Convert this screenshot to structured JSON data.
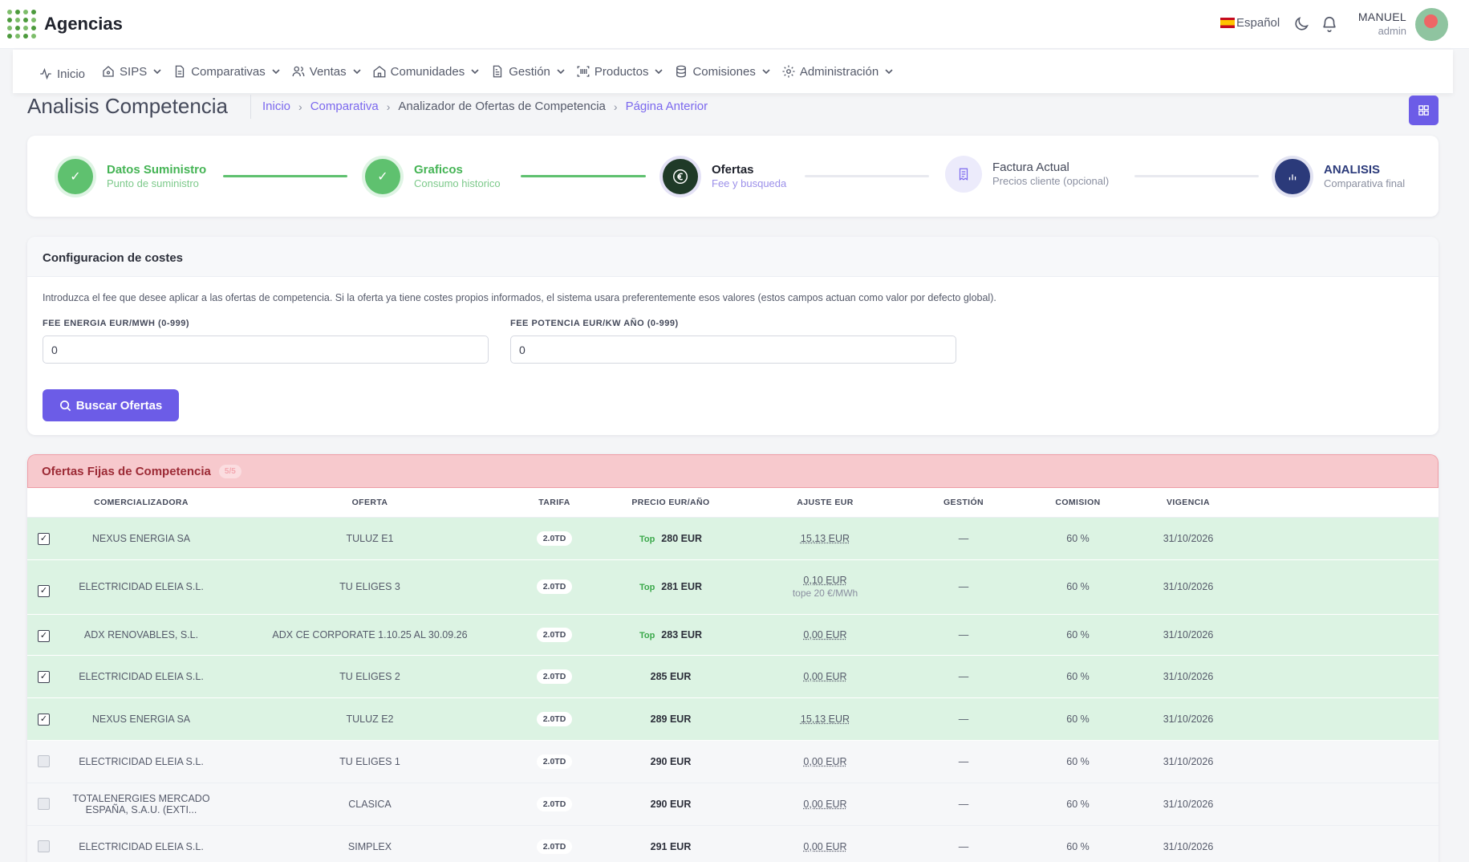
{
  "app": {
    "title": "Agencias"
  },
  "header": {
    "language": "Español",
    "user_name": "MANUEL",
    "user_role": "admin"
  },
  "nav": {
    "items": [
      {
        "label": "Inicio",
        "icon": "activity-icon"
      },
      {
        "label": "SIPS",
        "icon": "home-icon"
      },
      {
        "label": "Comparativas",
        "icon": "document-icon"
      },
      {
        "label": "Ventas",
        "icon": "users-icon"
      },
      {
        "label": "Comunidades",
        "icon": "house-icon"
      },
      {
        "label": "Gestión",
        "icon": "file-text-icon"
      },
      {
        "label": "Productos",
        "icon": "barcode-icon"
      },
      {
        "label": "Comisiones",
        "icon": "database-icon"
      },
      {
        "label": "Administración",
        "icon": "gear-icon"
      }
    ]
  },
  "page": {
    "title": "Analisis Competencia",
    "breadcrumb": [
      "Inicio",
      "Comparativa",
      "Analizador de Ofertas de Competencia",
      "Página Anterior"
    ]
  },
  "stepper": {
    "steps": [
      {
        "title": "Datos Suministro",
        "subtitle": "Punto de suministro",
        "state": "done"
      },
      {
        "title": "Graficos",
        "subtitle": "Consumo historico",
        "state": "done"
      },
      {
        "title": "Ofertas",
        "subtitle": "Fee y busqueda",
        "state": "current"
      },
      {
        "title": "Factura Actual",
        "subtitle": "Precios cliente (opcional)",
        "state": "pending"
      },
      {
        "title": "ANALISIS",
        "subtitle": "Comparativa final",
        "state": "final"
      }
    ]
  },
  "config": {
    "title": "Configuracion de costes",
    "description": "Introduzca el fee que desee aplicar a las ofertas de competencia. Si la oferta ya tiene costes propios informados, el sistema usara preferentemente esos valores (estos campos actuan como valor por defecto global).",
    "fee_energia_label": "FEE ENERGIA EUR/MWH (0-999)",
    "fee_energia_value": "0",
    "fee_potencia_label": "FEE POTENCIA EUR/KW AÑO (0-999)",
    "fee_potencia_value": "0",
    "search_button": "Buscar Ofertas"
  },
  "offers": {
    "title": "Ofertas Fijas de Competencia",
    "count": "5/5",
    "columns": [
      "COMERCIALIZADORA",
      "OFERTA",
      "TARIFA",
      "PRECIO EUR/AÑO",
      "AJUSTE EUR",
      "GESTIÓN",
      "COMISION",
      "VIGENCIA"
    ],
    "rows": [
      {
        "checked": true,
        "comercializadora": "NEXUS ENERGIA SA",
        "oferta": "TULUZ E1",
        "tarifa": "2.0TD",
        "top": "Top",
        "precio": "280 EUR",
        "ajuste": "15,13 EUR",
        "ajuste_note": "",
        "gestion": "—",
        "comision": "60 %",
        "vigencia": "31/10/2026"
      },
      {
        "checked": true,
        "comercializadora": "ELECTRICIDAD ELEIA S.L.",
        "oferta": "TU ELIGES 3",
        "tarifa": "2.0TD",
        "top": "Top",
        "precio": "281 EUR",
        "ajuste": "0,10 EUR",
        "ajuste_note": "tope 20 €/MWh",
        "gestion": "—",
        "comision": "60 %",
        "vigencia": "31/10/2026"
      },
      {
        "checked": true,
        "comercializadora": "ADX RENOVABLES, S.L.",
        "oferta": "ADX CE CORPORATE 1.10.25 AL 30.09.26",
        "tarifa": "2.0TD",
        "top": "Top",
        "precio": "283 EUR",
        "ajuste": "0,00 EUR",
        "ajuste_note": "",
        "gestion": "—",
        "comision": "60 %",
        "vigencia": "31/10/2026"
      },
      {
        "checked": true,
        "comercializadora": "ELECTRICIDAD ELEIA S.L.",
        "oferta": "TU ELIGES 2",
        "tarifa": "2.0TD",
        "top": "",
        "precio": "285 EUR",
        "ajuste": "0,00 EUR",
        "ajuste_note": "",
        "gestion": "—",
        "comision": "60 %",
        "vigencia": "31/10/2026"
      },
      {
        "checked": true,
        "comercializadora": "NEXUS ENERGIA SA",
        "oferta": "TULUZ E2",
        "tarifa": "2.0TD",
        "top": "",
        "precio": "289 EUR",
        "ajuste": "15,13 EUR",
        "ajuste_note": "",
        "gestion": "—",
        "comision": "60 %",
        "vigencia": "31/10/2026"
      },
      {
        "checked": false,
        "comercializadora": "ELECTRICIDAD ELEIA S.L.",
        "oferta": "TU ELIGES 1",
        "tarifa": "2.0TD",
        "top": "",
        "precio": "290 EUR",
        "ajuste": "0,00 EUR",
        "ajuste_note": "",
        "gestion": "—",
        "comision": "60 %",
        "vigencia": "31/10/2026"
      },
      {
        "checked": false,
        "comercializadora": "TOTALENERGIES MERCADO ESPAÑA, S.A.U. (EXTI...",
        "oferta": "CLASICA",
        "tarifa": "2.0TD",
        "top": "",
        "precio": "290 EUR",
        "ajuste": "0,00 EUR",
        "ajuste_note": "",
        "gestion": "—",
        "comision": "60 %",
        "vigencia": "31/10/2026"
      },
      {
        "checked": false,
        "comercializadora": "ELECTRICIDAD ELEIA S.L.",
        "oferta": "SIMPLEX",
        "tarifa": "2.0TD",
        "top": "",
        "precio": "291 EUR",
        "ajuste": "0,00 EUR",
        "ajuste_note": "",
        "gestion": "—",
        "comision": "60 %",
        "vigencia": "31/10/2026"
      }
    ]
  }
}
